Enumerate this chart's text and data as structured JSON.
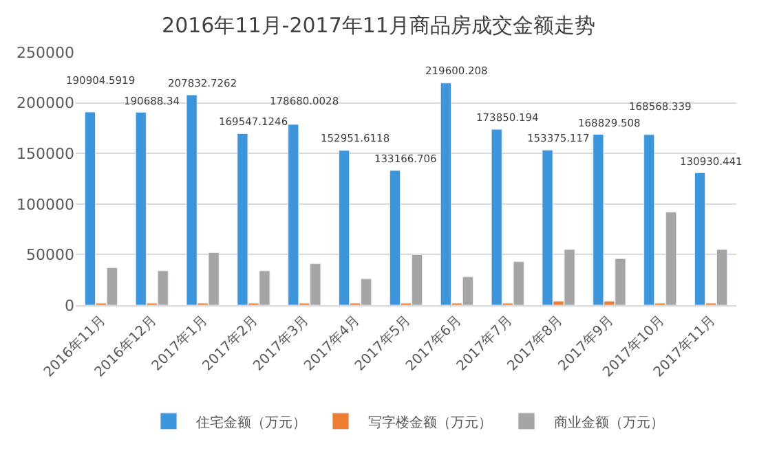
{
  "chart_data": {
    "type": "bar",
    "title": "2016年11月-2017年11月商品房成交金额走势",
    "categories": [
      "2016年11月",
      "2016年12月",
      "2017年1月",
      "2017年2月",
      "2017年3月",
      "2017年4月",
      "2017年5月",
      "2017年6月",
      "2017年7月",
      "2017年8月",
      "2017年9月",
      "2017年10月",
      "2017年11月"
    ],
    "series": [
      {
        "name": "住宅金额（万元）",
        "color": "#3d95dc",
        "values": [
          190904.5919,
          190688.34,
          207832.7262,
          169547.1246,
          178680.0028,
          152951.6118,
          133166.706,
          219600.208,
          173850.194,
          153375.117,
          168829.508,
          168568.339,
          130930.441
        ],
        "value_labels": [
          "190904.5919",
          "190688.34",
          "207832.7262",
          "169547.1246",
          "178680.0028",
          "152951.6118",
          "133166.706",
          "219600.208",
          "173850.194",
          "153375.117",
          "168829.508",
          "168568.339",
          "130930.441"
        ]
      },
      {
        "name": "写字楼金额（万元）",
        "color": "#ed7d31",
        "values": [
          2000,
          2000,
          2000,
          2000,
          2000,
          2000,
          2000,
          2000,
          2000,
          4000,
          4000,
          2000,
          2000
        ]
      },
      {
        "name": "商业金额（万元）",
        "color": "#a5a5a5",
        "values": [
          37000,
          34000,
          52000,
          34000,
          41000,
          26000,
          50000,
          28000,
          43000,
          55000,
          46000,
          92000,
          55000
        ]
      }
    ],
    "ylim": [
      0,
      250000
    ],
    "yticks": [
      0,
      50000,
      100000,
      150000,
      200000,
      250000
    ],
    "grid": "y",
    "legend": "bottom"
  }
}
